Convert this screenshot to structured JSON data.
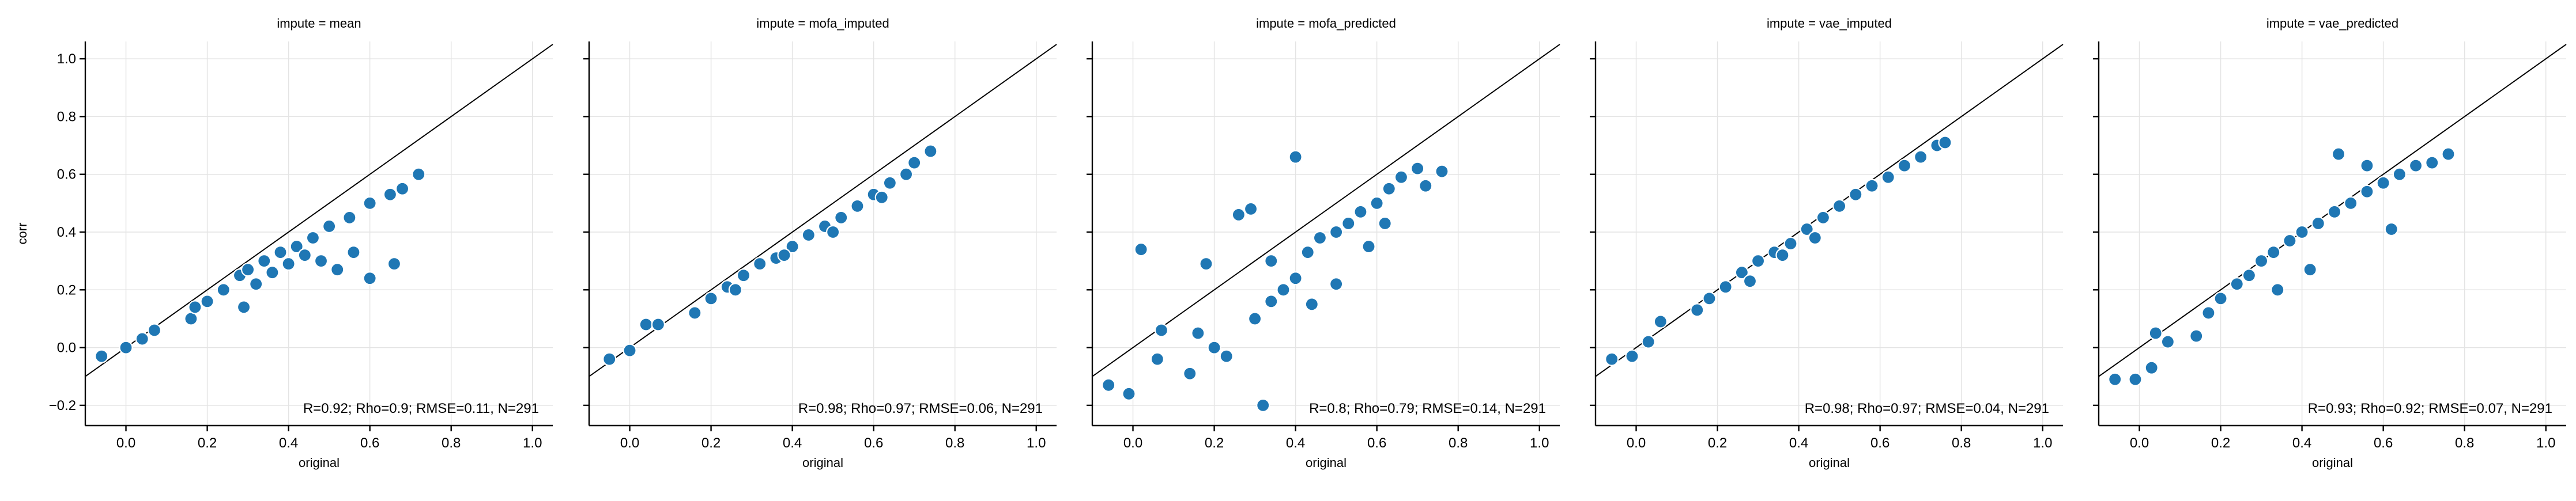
{
  "colors": {
    "points": "#1f77b4"
  },
  "chart_data": [
    {
      "type": "scatter",
      "title": "impute = mean",
      "xlabel": "original",
      "ylabel": "corr",
      "xlim": [
        -0.1,
        1.05
      ],
      "ylim": [
        -0.27,
        1.06
      ],
      "xticks": [
        0.0,
        0.2,
        0.4,
        0.6,
        0.8,
        1.0
      ],
      "yticks": [
        -0.2,
        0.0,
        0.2,
        0.4,
        0.6,
        0.8,
        1.0
      ],
      "xtick_labels": [
        "0.0",
        "0.2",
        "0.4",
        "0.6",
        "0.8",
        "1.0"
      ],
      "ytick_labels": [
        "−0.2",
        "0.0",
        "0.2",
        "0.4",
        "0.6",
        "0.8",
        "1.0"
      ],
      "grid": true,
      "reference_line": "y = x",
      "annotation": "R=0.92; Rho=0.9; RMSE=0.11, N=291",
      "n": 291,
      "x": [
        -0.06,
        0.0,
        0.04,
        0.07,
        0.16,
        0.17,
        0.2,
        0.24,
        0.28,
        0.3,
        0.34,
        0.38,
        0.42,
        0.46,
        0.5,
        0.55,
        0.6,
        0.65,
        0.68,
        0.72,
        0.66,
        0.6,
        0.56,
        0.52,
        0.48,
        0.44,
        0.4,
        0.36,
        0.32,
        0.29
      ],
      "y": [
        -0.03,
        0.0,
        0.03,
        0.06,
        0.1,
        0.14,
        0.16,
        0.2,
        0.25,
        0.27,
        0.3,
        0.33,
        0.35,
        0.38,
        0.42,
        0.45,
        0.5,
        0.53,
        0.55,
        0.6,
        0.29,
        0.24,
        0.33,
        0.27,
        0.3,
        0.32,
        0.29,
        0.26,
        0.22,
        0.14
      ]
    },
    {
      "type": "scatter",
      "title": "impute = mofa_imputed",
      "xlabel": "original",
      "ylabel": "",
      "xlim": [
        -0.1,
        1.05
      ],
      "ylim": [
        -0.27,
        1.06
      ],
      "xticks": [
        0.0,
        0.2,
        0.4,
        0.6,
        0.8,
        1.0
      ],
      "yticks": [
        -0.2,
        0.0,
        0.2,
        0.4,
        0.6,
        0.8,
        1.0
      ],
      "xtick_labels": [
        "0.0",
        "0.2",
        "0.4",
        "0.6",
        "0.8",
        "1.0"
      ],
      "ytick_labels": [],
      "grid": true,
      "reference_line": "y = x",
      "annotation": "R=0.98; Rho=0.97; RMSE=0.06, N=291",
      "n": 291,
      "x": [
        -0.05,
        0.0,
        0.04,
        0.07,
        0.16,
        0.2,
        0.24,
        0.28,
        0.32,
        0.36,
        0.4,
        0.44,
        0.48,
        0.52,
        0.56,
        0.6,
        0.64,
        0.68,
        0.74,
        0.7,
        0.62,
        0.5,
        0.38,
        0.26
      ],
      "y": [
        -0.04,
        -0.01,
        0.08,
        0.08,
        0.12,
        0.17,
        0.21,
        0.25,
        0.29,
        0.31,
        0.35,
        0.39,
        0.42,
        0.45,
        0.49,
        0.53,
        0.57,
        0.6,
        0.68,
        0.64,
        0.52,
        0.4,
        0.32,
        0.2
      ]
    },
    {
      "type": "scatter",
      "title": "impute = mofa_predicted",
      "xlabel": "original",
      "ylabel": "",
      "xlim": [
        -0.1,
        1.05
      ],
      "ylim": [
        -0.27,
        1.06
      ],
      "xticks": [
        0.0,
        0.2,
        0.4,
        0.6,
        0.8,
        1.0
      ],
      "yticks": [
        -0.2,
        0.0,
        0.2,
        0.4,
        0.6,
        0.8,
        1.0
      ],
      "xtick_labels": [
        "0.0",
        "0.2",
        "0.4",
        "0.6",
        "0.8",
        "1.0"
      ],
      "ytick_labels": [],
      "grid": true,
      "reference_line": "y = x",
      "annotation": "R=0.8; Rho=0.79; RMSE=0.14, N=291",
      "n": 291,
      "x": [
        -0.06,
        -0.01,
        0.02,
        0.06,
        0.07,
        0.14,
        0.16,
        0.18,
        0.2,
        0.23,
        0.26,
        0.29,
        0.32,
        0.34,
        0.37,
        0.4,
        0.43,
        0.46,
        0.5,
        0.53,
        0.56,
        0.6,
        0.63,
        0.66,
        0.7,
        0.72,
        0.76,
        0.34,
        0.3,
        0.44,
        0.5,
        0.58,
        0.62,
        0.4
      ],
      "y": [
        -0.13,
        -0.16,
        0.34,
        -0.04,
        0.06,
        -0.09,
        0.05,
        0.29,
        0.0,
        -0.03,
        0.46,
        0.48,
        -0.2,
        0.16,
        0.2,
        0.24,
        0.33,
        0.38,
        0.4,
        0.43,
        0.47,
        0.5,
        0.55,
        0.59,
        0.62,
        0.56,
        0.61,
        0.3,
        0.1,
        0.15,
        0.22,
        0.35,
        0.43,
        0.66
      ]
    },
    {
      "type": "scatter",
      "title": "impute = vae_imputed",
      "xlabel": "original",
      "ylabel": "",
      "xlim": [
        -0.1,
        1.05
      ],
      "ylim": [
        -0.27,
        1.06
      ],
      "xticks": [
        0.0,
        0.2,
        0.4,
        0.6,
        0.8,
        1.0
      ],
      "yticks": [
        -0.2,
        0.0,
        0.2,
        0.4,
        0.6,
        0.8,
        1.0
      ],
      "xtick_labels": [
        "0.0",
        "0.2",
        "0.4",
        "0.6",
        "0.8",
        "1.0"
      ],
      "ytick_labels": [],
      "grid": true,
      "reference_line": "y = x",
      "annotation": "R=0.98; Rho=0.97; RMSE=0.04, N=291",
      "n": 291,
      "x": [
        -0.06,
        -0.01,
        0.03,
        0.06,
        0.15,
        0.18,
        0.22,
        0.26,
        0.3,
        0.34,
        0.38,
        0.42,
        0.46,
        0.5,
        0.54,
        0.58,
        0.62,
        0.66,
        0.7,
        0.74,
        0.76,
        0.44,
        0.36,
        0.28
      ],
      "y": [
        -0.04,
        -0.03,
        0.02,
        0.09,
        0.13,
        0.17,
        0.21,
        0.26,
        0.3,
        0.33,
        0.36,
        0.41,
        0.45,
        0.49,
        0.53,
        0.56,
        0.59,
        0.63,
        0.66,
        0.7,
        0.71,
        0.38,
        0.32,
        0.23
      ]
    },
    {
      "type": "scatter",
      "title": "impute = vae_predicted",
      "xlabel": "original",
      "ylabel": "",
      "xlim": [
        -0.1,
        1.05
      ],
      "ylim": [
        -0.27,
        1.06
      ],
      "xticks": [
        0.0,
        0.2,
        0.4,
        0.6,
        0.8,
        1.0
      ],
      "yticks": [
        -0.2,
        0.0,
        0.2,
        0.4,
        0.6,
        0.8,
        1.0
      ],
      "xtick_labels": [
        "0.0",
        "0.2",
        "0.4",
        "0.6",
        "0.8",
        "1.0"
      ],
      "ytick_labels": [],
      "grid": true,
      "reference_line": "y = x",
      "annotation": "R=0.93; Rho=0.92; RMSE=0.07, N=291",
      "n": 291,
      "x": [
        -0.06,
        -0.01,
        0.03,
        0.04,
        0.07,
        0.14,
        0.17,
        0.2,
        0.24,
        0.27,
        0.3,
        0.33,
        0.37,
        0.4,
        0.44,
        0.48,
        0.52,
        0.56,
        0.6,
        0.64,
        0.68,
        0.72,
        0.76,
        0.49,
        0.56,
        0.62,
        0.42,
        0.34
      ],
      "y": [
        -0.11,
        -0.11,
        -0.07,
        0.05,
        0.02,
        0.04,
        0.12,
        0.17,
        0.22,
        0.25,
        0.3,
        0.33,
        0.37,
        0.4,
        0.43,
        0.47,
        0.5,
        0.54,
        0.57,
        0.6,
        0.63,
        0.64,
        0.67,
        0.67,
        0.63,
        0.41,
        0.27,
        0.2
      ]
    }
  ]
}
